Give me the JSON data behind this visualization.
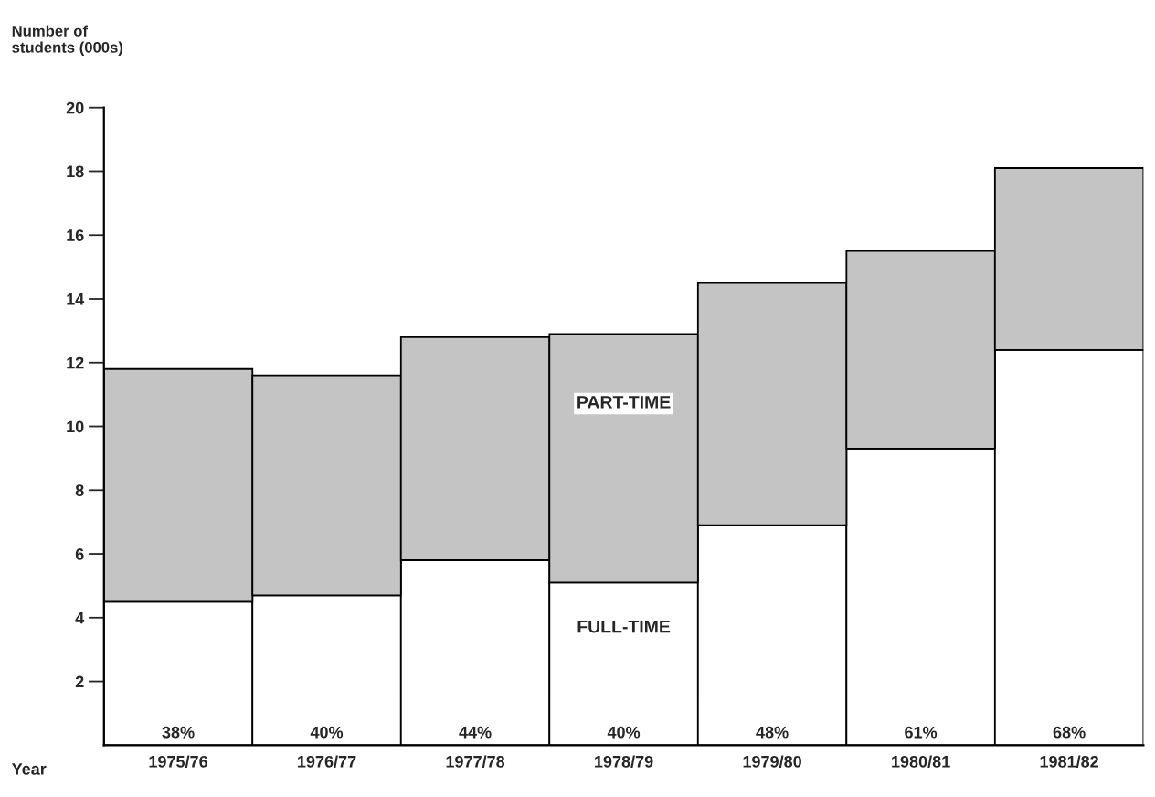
{
  "chart_data": {
    "type": "bar",
    "stacked": true,
    "ylabel": "Number of\nstudents (000s)",
    "xlabel": "Year",
    "categories": [
      "1975/76",
      "1976/77",
      "1977/78",
      "1978/79",
      "1979/80",
      "1980/81",
      "1981/82"
    ],
    "series": [
      {
        "name": "FULL-TIME",
        "color": "#ffffff",
        "values": [
          4.5,
          4.7,
          5.8,
          5.1,
          6.9,
          9.3,
          12.4
        ]
      },
      {
        "name": "PART-TIME",
        "color": "#c4c4c4",
        "values": [
          7.3,
          6.9,
          7.0,
          7.8,
          7.6,
          6.2,
          5.7
        ]
      }
    ],
    "annotations": [
      {
        "text": "38%",
        "x": "1975/76",
        "y": 0
      },
      {
        "text": "40%",
        "x": "1976/77",
        "y": 0
      },
      {
        "text": "44%",
        "x": "1977/78",
        "y": 0
      },
      {
        "text": "40%",
        "x": "1978/79",
        "y": 0
      },
      {
        "text": "48%",
        "x": "1979/80",
        "y": 0
      },
      {
        "text": "61%",
        "x": "1980/81",
        "y": 0
      },
      {
        "text": "68%",
        "x": "1981/82",
        "y": 0
      }
    ],
    "ylim": [
      0,
      20
    ],
    "yticks": [
      2,
      4,
      6,
      8,
      10,
      12,
      14,
      16,
      18,
      20
    ],
    "grid": false,
    "legend": false
  }
}
